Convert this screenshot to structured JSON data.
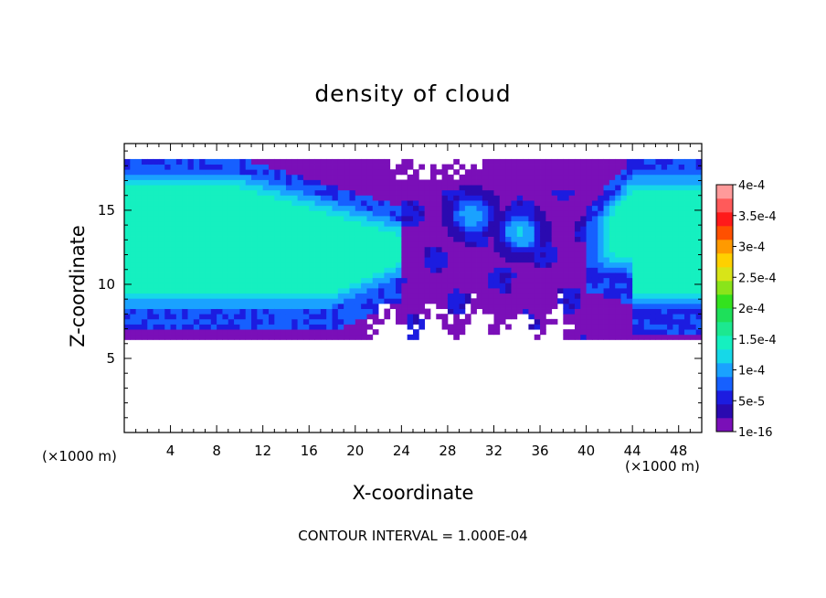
{
  "chart_data": {
    "type": "heatmap",
    "title": "density of cloud",
    "xlabel": "X-coordinate",
    "ylabel": "Z-coordinate",
    "x_unit_left": "(×1000 m)",
    "x_unit_right": "(×1000 m)",
    "footnote": "CONTOUR INTERVAL = 1.000E-04",
    "xlim": [
      0,
      50
    ],
    "ylim": [
      0,
      19.5
    ],
    "x_ticks": [
      4,
      8,
      12,
      16,
      20,
      24,
      28,
      32,
      36,
      40,
      44,
      48
    ],
    "y_ticks": [
      5,
      10,
      15
    ],
    "colorbar": {
      "labels": [
        "1e-16",
        "5e-5",
        "1e-4",
        "1.5e-4",
        "2e-4",
        "2.5e-4",
        "3e-4",
        "3.5e-4",
        "4e-4"
      ],
      "levels": [
        0,
        5e-05,
        0.0001,
        0.00015,
        0.0002,
        0.00025,
        0.0003,
        0.00035,
        0.0004
      ],
      "colors": [
        "#7a0fb8",
        "#2a0ab0",
        "#1c1ce0",
        "#1660ff",
        "#1aa2ff",
        "#16d8e8",
        "#15f0c0",
        "#1ce890",
        "#1ee05a",
        "#33e21e",
        "#8ae41a",
        "#d8e418",
        "#ffd000",
        "#ff9a00",
        "#ff5000",
        "#ff1a1a",
        "#ff5a5a",
        "#ff9a9a"
      ]
    },
    "cloud_layer": {
      "base_z": 6.1,
      "top_z": 18.4,
      "main_cloud_left": {
        "x": [
          0,
          24
        ],
        "core_value": 0.00016,
        "core_z": [
          8.4,
          17.5
        ]
      },
      "main_cloud_right": {
        "x": [
          40,
          50
        ],
        "core_value": 0.00015,
        "core_z": [
          8.3,
          17.6
        ]
      },
      "middle_region": {
        "x": [
          24,
          40
        ],
        "value": 2e-05
      },
      "embedded_cells": [
        {
          "x": 30.1,
          "z": 14.7,
          "value": 0.00012
        },
        {
          "x": 34.3,
          "z": 13.5,
          "value": 0.00013
        }
      ]
    }
  }
}
